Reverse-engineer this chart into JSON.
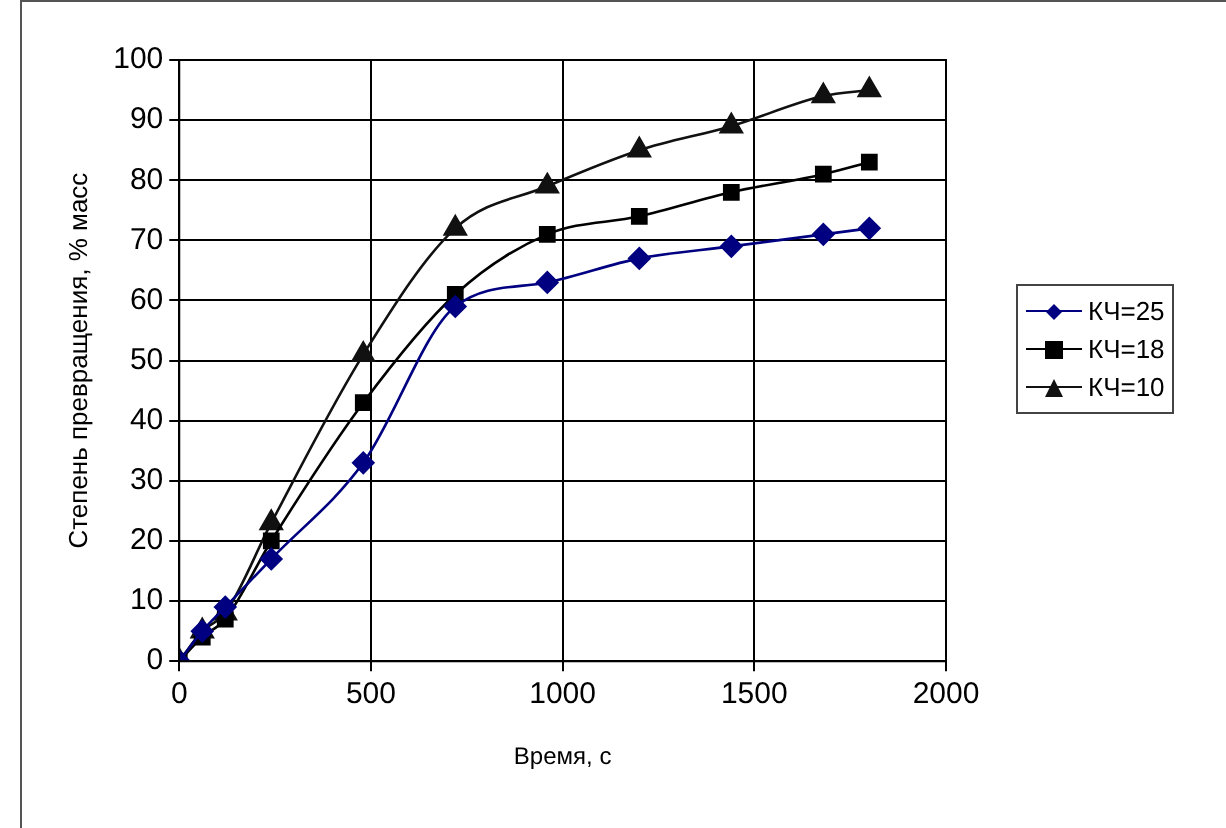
{
  "chart_data": {
    "type": "line",
    "xlabel": "Время, с",
    "ylabel": "Степень превращения, % масс",
    "x": [
      0,
      60,
      120,
      240,
      480,
      720,
      960,
      1200,
      1440,
      1680,
      1800
    ],
    "series": [
      {
        "name": "КЧ=25",
        "color": "#000080",
        "marker": "diamond",
        "values": [
          0,
          5,
          9,
          17,
          33,
          59,
          63,
          67,
          69,
          71,
          72
        ]
      },
      {
        "name": "КЧ=18",
        "color": "#000000",
        "marker": "square",
        "values": [
          0,
          4,
          7,
          20,
          43,
          61,
          71,
          74,
          78,
          81,
          83
        ]
      },
      {
        "name": "КЧ=10",
        "color": "#111111",
        "marker": "triangle",
        "values": [
          0,
          5,
          8,
          23,
          51,
          72,
          79,
          85,
          89,
          94,
          95
        ]
      }
    ],
    "xlim": [
      0,
      2000
    ],
    "xticks": [
      0,
      500,
      1000,
      1500,
      2000
    ],
    "ylim": [
      0,
      100
    ],
    "yticks": [
      0,
      10,
      20,
      30,
      40,
      50,
      60,
      70,
      80,
      90,
      100
    ],
    "grid": true,
    "legend": "right",
    "line_style": "solid"
  }
}
